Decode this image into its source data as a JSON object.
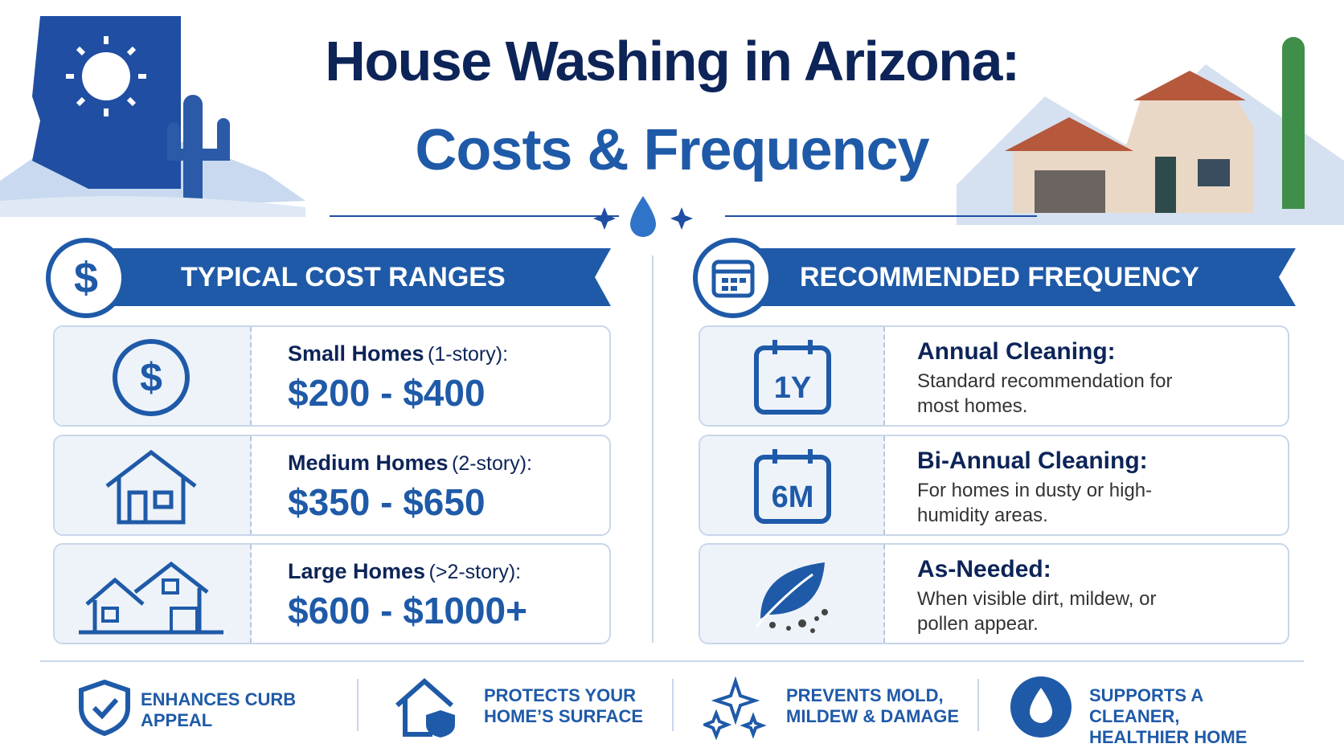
{
  "header": {
    "title_line1": "House Washing in Arizona:",
    "title_line2": "Costs & Frequency"
  },
  "costs": {
    "heading_icon": "$",
    "heading": "TYPICAL COST RANGES",
    "items": [
      {
        "icon": "$",
        "label": "Small Homes",
        "note": "(1-story):",
        "price": "$200 - $400"
      },
      {
        "label": "Medium Homes",
        "note": "(2-story):",
        "price": "$350 - $650"
      },
      {
        "label": "Large Homes",
        "note": "(>2-story):",
        "price": "$600 - $1000+"
      }
    ]
  },
  "frequency": {
    "heading": "RECOMMENDED FREQUENCY",
    "items": [
      {
        "icon": "1Y",
        "title": "Annual Cleaning:",
        "text": "Standard recommendation for most homes."
      },
      {
        "icon": "6M",
        "title": "Bi-Annual Cleaning:",
        "text": "For homes in dusty or high-humidity areas."
      },
      {
        "title": "As-Needed:",
        "text": "When visible dirt, mildew, or pollen appear."
      }
    ]
  },
  "benefits": [
    "ENHANCES CURB APPEAL",
    "PROTECTS YOUR HOME’S SURFACE",
    "PREVENTS MOLD, MILDEW & DAMAGE",
    "SUPPORTS A CLEANER, HEALTHIER HOME"
  ]
}
